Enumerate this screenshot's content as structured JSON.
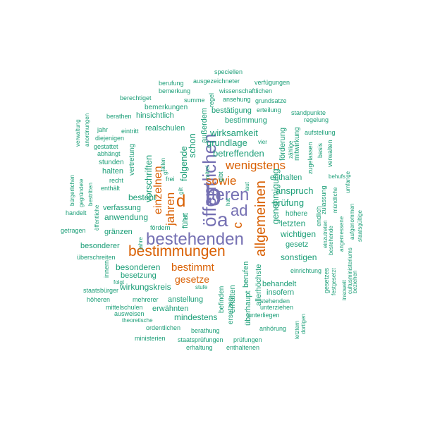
{
  "words": [
    {
      "text": "b",
      "color": "purple"
    },
    {
      "text": "a",
      "color": "purple"
    },
    {
      "text": "bestehenden",
      "color": "purple"
    },
    {
      "text": "öffentlichen",
      "color": "purple"
    },
    {
      "text": "deren",
      "color": "purple"
    },
    {
      "text": "ad",
      "color": "purple"
    },
    {
      "text": "c",
      "color": "orange"
    },
    {
      "text": "d",
      "color": "orange"
    },
    {
      "text": "bestimmungen",
      "color": "orange"
    },
    {
      "text": "allgemeinen",
      "color": "orange"
    },
    {
      "text": "wenigstens",
      "color": "orange"
    },
    {
      "text": "sowie",
      "color": "orange"
    },
    {
      "text": "jahren",
      "color": "orange"
    },
    {
      "text": "einzelnen",
      "color": "orange"
    },
    {
      "text": "bestimmt",
      "color": "orange"
    },
    {
      "text": "gesetze",
      "color": "orange"
    },
    {
      "text": "wirksamkeit",
      "color": "green"
    },
    {
      "text": "grundlage",
      "color": "green"
    },
    {
      "text": "betreffenden",
      "color": "green"
    },
    {
      "text": "vorschriften",
      "color": "green"
    },
    {
      "text": "folgende",
      "color": "green"
    },
    {
      "text": "schon",
      "color": "green"
    },
    {
      "text": "führt",
      "color": "green"
    },
    {
      "text": "genehmigung",
      "color": "green"
    },
    {
      "text": "anspruch",
      "color": "green"
    },
    {
      "text": "prüfung",
      "color": "green"
    },
    {
      "text": "letzten",
      "color": "green"
    },
    {
      "text": "wichtigen",
      "color": "green"
    },
    {
      "text": "sonstigen",
      "color": "green"
    },
    {
      "text": "gesetz",
      "color": "green"
    },
    {
      "text": "höhere",
      "color": "green"
    },
    {
      "text": "enthalten",
      "color": "green"
    },
    {
      "text": "besteht",
      "color": "green"
    },
    {
      "text": "anwendung",
      "color": "green"
    },
    {
      "text": "verfassung",
      "color": "green"
    },
    {
      "text": "gränzen",
      "color": "green"
    },
    {
      "text": "besonderer",
      "color": "green"
    },
    {
      "text": "besonderen",
      "color": "green"
    },
    {
      "text": "besetzung",
      "color": "green"
    },
    {
      "text": "wirkungskreis",
      "color": "green"
    },
    {
      "text": "anstellung",
      "color": "green"
    },
    {
      "text": "erwähnten",
      "color": "green"
    },
    {
      "text": "mindestens",
      "color": "green"
    },
    {
      "text": "behandelt",
      "color": "green"
    },
    {
      "text": "insofern",
      "color": "green"
    },
    {
      "text": "überhaupt",
      "color": "green"
    },
    {
      "text": "berufen",
      "color": "green"
    },
    {
      "text": "allerhöchste",
      "color": "green"
    },
    {
      "text": "erhalten",
      "color": "green"
    },
    {
      "text": "ersetzen",
      "color": "green"
    },
    {
      "text": "befinden",
      "color": "green"
    },
    {
      "text": "hinsichtlich",
      "color": "green"
    },
    {
      "text": "bemerkungen",
      "color": "green"
    },
    {
      "text": "realschulen",
      "color": "green"
    },
    {
      "text": "außerdem",
      "color": "green"
    },
    {
      "text": "bestätigung",
      "color": "green"
    },
    {
      "text": "bestimmung",
      "color": "green"
    },
    {
      "text": "förderung",
      "color": "green"
    },
    {
      "text": "mitwirkung",
      "color": "green"
    },
    {
      "text": "aufstellung",
      "color": "green"
    },
    {
      "text": "wissenschaftlichen",
      "color": "green"
    },
    {
      "text": "ausgezeichneter",
      "color": "green"
    },
    {
      "text": "speciellen",
      "color": "green"
    },
    {
      "text": "berufung",
      "color": "green"
    },
    {
      "text": "verfügungen",
      "color": "green"
    },
    {
      "text": "bemerkung",
      "color": "green"
    },
    {
      "text": "regel",
      "color": "green"
    },
    {
      "text": "ansehung",
      "color": "green"
    },
    {
      "text": "grundsatze",
      "color": "green"
    },
    {
      "text": "berechtiget",
      "color": "green"
    },
    {
      "text": "summe",
      "color": "green"
    },
    {
      "text": "erteilung",
      "color": "green"
    },
    {
      "text": "standpunkte",
      "color": "green"
    },
    {
      "text": "berathen",
      "color": "green"
    },
    {
      "text": "regelung",
      "color": "green"
    },
    {
      "text": "jahr",
      "color": "green"
    },
    {
      "text": "eintritt",
      "color": "green"
    },
    {
      "text": "diejenigen",
      "color": "green"
    },
    {
      "text": "gestattet",
      "color": "green"
    },
    {
      "text": "abhängt",
      "color": "green"
    },
    {
      "text": "stunden",
      "color": "green"
    },
    {
      "text": "halten",
      "color": "green"
    },
    {
      "text": "vertretung",
      "color": "green"
    },
    {
      "text": "recht",
      "color": "green"
    },
    {
      "text": "enthält",
      "color": "green"
    },
    {
      "text": "handelt",
      "color": "green"
    },
    {
      "text": "getragen",
      "color": "green"
    },
    {
      "text": "überschreiten",
      "color": "green"
    },
    {
      "text": "innern",
      "color": "green"
    },
    {
      "text": "folgt",
      "color": "green"
    },
    {
      "text": "staatsbürger",
      "color": "green"
    },
    {
      "text": "höheren",
      "color": "green"
    },
    {
      "text": "mehrerer",
      "color": "green"
    },
    {
      "text": "mittelschulen",
      "color": "green"
    },
    {
      "text": "ausweisen",
      "color": "green"
    },
    {
      "text": "theoretische",
      "color": "green"
    },
    {
      "text": "ordentlichen",
      "color": "green"
    },
    {
      "text": "ministerien",
      "color": "green"
    },
    {
      "text": "berathung",
      "color": "green"
    },
    {
      "text": "staatsprüfungen",
      "color": "green"
    },
    {
      "text": "prüfungen",
      "color": "green"
    },
    {
      "text": "erhaltung",
      "color": "green"
    },
    {
      "text": "enthaltenen",
      "color": "green"
    },
    {
      "text": "anhörung",
      "color": "green"
    },
    {
      "text": "unterliegen",
      "color": "green"
    },
    {
      "text": "stehenden",
      "color": "green"
    },
    {
      "text": "unterziehen",
      "color": "green"
    },
    {
      "text": "einrichtung",
      "color": "green"
    },
    {
      "text": "stufe",
      "color": "green"
    },
    {
      "text": "jahre",
      "color": "green"
    },
    {
      "text": "fördern",
      "color": "green"
    },
    {
      "text": "frei",
      "color": "green"
    },
    {
      "text": "gilt",
      "color": "green"
    },
    {
      "text": "fällen",
      "color": "green"
    },
    {
      "text": "gt",
      "color": "green"
    },
    {
      "text": "gibt",
      "color": "green"
    },
    {
      "text": "mittel",
      "color": "green"
    },
    {
      "text": "laut",
      "color": "green"
    },
    {
      "text": "vier",
      "color": "green"
    },
    {
      "text": "zählige",
      "color": "green"
    },
    {
      "text": "zugelassen",
      "color": "green"
    },
    {
      "text": "basis",
      "color": "green"
    },
    {
      "text": "verwalten",
      "color": "green"
    },
    {
      "text": "behufs",
      "color": "green"
    },
    {
      "text": "mündliche",
      "color": "green"
    },
    {
      "text": "zulassung",
      "color": "green"
    },
    {
      "text": "endlich",
      "color": "green"
    },
    {
      "text": "einzutreten",
      "color": "green"
    },
    {
      "text": "bestehende",
      "color": "green"
    },
    {
      "text": "angemessene",
      "color": "green"
    },
    {
      "text": "umfange",
      "color": "green"
    },
    {
      "text": "aufgenommen",
      "color": "green"
    },
    {
      "text": "cultusministeriums",
      "color": "green"
    },
    {
      "text": "staatsgültige",
      "color": "green"
    },
    {
      "text": "gesetzes",
      "color": "green"
    },
    {
      "text": "festgesetzt",
      "color": "green"
    },
    {
      "text": "insoweit",
      "color": "green"
    },
    {
      "text": "beziehen",
      "color": "green"
    },
    {
      "text": "letztern",
      "color": "green"
    },
    {
      "text": "dortigen",
      "color": "green"
    },
    {
      "text": "bürgerlichen",
      "color": "green"
    },
    {
      "text": "gegründete",
      "color": "green"
    },
    {
      "text": "bestritten",
      "color": "green"
    },
    {
      "text": "öffentliche",
      "color": "green"
    },
    {
      "text": "verwaltung",
      "color": "green"
    },
    {
      "text": "anordnungen",
      "color": "green"
    },
    {
      "text": "hat",
      "color": "green"
    },
    {
      "text": "ist",
      "color": "green"
    }
  ]
}
